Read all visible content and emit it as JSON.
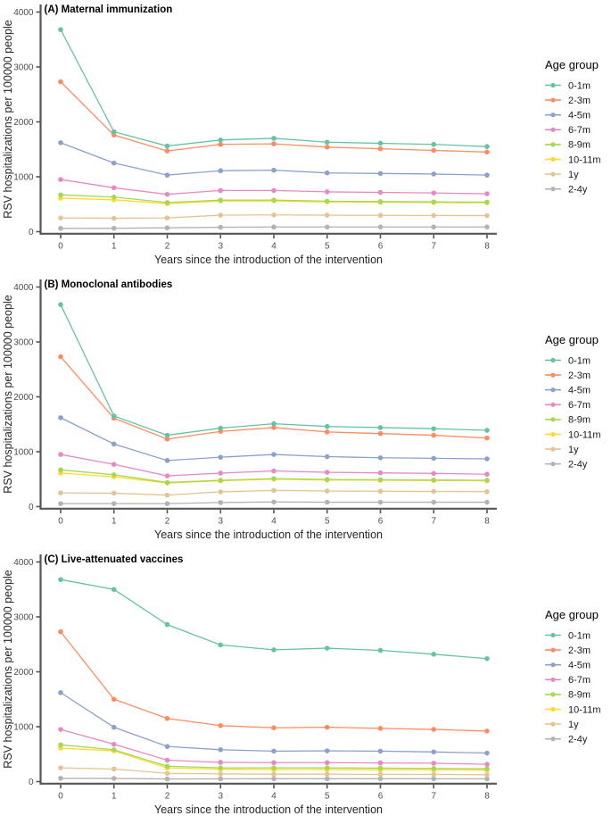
{
  "figure": {
    "background": "#ffffff",
    "axis_color": "#555555",
    "tick_label_color": "#4d4d4d",
    "axis_title_color": "#262626",
    "title_color": "#000000"
  },
  "chart_data": [
    {
      "type": "line",
      "title": "(A) Maternal immunization",
      "xlabel": "Years since the introduction of the intervention",
      "ylabel": "RSV hospitalizations per 100000 people",
      "legend_title": "Age group",
      "legend_position": "right",
      "grid": false,
      "marker": "circle",
      "x": [
        0,
        1,
        2,
        3,
        4,
        5,
        6,
        7,
        8
      ],
      "ylim": [
        0,
        4000
      ],
      "yticks": [
        0,
        1000,
        2000,
        3000,
        4000
      ],
      "series": [
        {
          "name": "0-1m",
          "color": "#66C2A5",
          "values": [
            3680,
            1820,
            1560,
            1670,
            1700,
            1630,
            1610,
            1590,
            1550
          ]
        },
        {
          "name": "2-3m",
          "color": "#FC8D62",
          "values": [
            2730,
            1760,
            1470,
            1590,
            1600,
            1540,
            1510,
            1480,
            1450
          ]
        },
        {
          "name": "4-5m",
          "color": "#8DA0CB",
          "values": [
            1620,
            1250,
            1030,
            1110,
            1120,
            1070,
            1060,
            1050,
            1030
          ]
        },
        {
          "name": "6-7m",
          "color": "#E78AC3",
          "values": [
            950,
            800,
            680,
            750,
            750,
            725,
            715,
            705,
            690
          ]
        },
        {
          "name": "8-9m",
          "color": "#A6D854",
          "values": [
            670,
            630,
            530,
            575,
            575,
            555,
            548,
            542,
            538
          ]
        },
        {
          "name": "10-11m",
          "color": "#FFD92F",
          "values": [
            610,
            580,
            510,
            560,
            560,
            542,
            535,
            530,
            527
          ]
        },
        {
          "name": "1y",
          "color": "#E5C494",
          "values": [
            250,
            245,
            250,
            300,
            305,
            300,
            297,
            295,
            292
          ]
        },
        {
          "name": "2-4y",
          "color": "#B3B3B3",
          "values": [
            60,
            62,
            70,
            80,
            85,
            85,
            85,
            85,
            85
          ]
        }
      ]
    },
    {
      "type": "line",
      "title": "(B) Monoclonal antibodies",
      "xlabel": "Years since the introduction of the intervention",
      "ylabel": "RSV hospitalizations per 100000 people",
      "legend_title": "Age group",
      "legend_position": "right",
      "grid": false,
      "marker": "circle",
      "x": [
        0,
        1,
        2,
        3,
        4,
        5,
        6,
        7,
        8
      ],
      "ylim": [
        0,
        4000
      ],
      "yticks": [
        0,
        1000,
        2000,
        3000,
        4000
      ],
      "series": [
        {
          "name": "0-1m",
          "color": "#66C2A5",
          "values": [
            3680,
            1650,
            1300,
            1430,
            1510,
            1460,
            1440,
            1420,
            1390
          ]
        },
        {
          "name": "2-3m",
          "color": "#FC8D62",
          "values": [
            2730,
            1610,
            1230,
            1370,
            1440,
            1360,
            1330,
            1300,
            1250
          ]
        },
        {
          "name": "4-5m",
          "color": "#8DA0CB",
          "values": [
            1620,
            1140,
            840,
            900,
            950,
            910,
            890,
            880,
            870
          ]
        },
        {
          "name": "6-7m",
          "color": "#E78AC3",
          "values": [
            950,
            770,
            560,
            610,
            650,
            625,
            615,
            605,
            590
          ]
        },
        {
          "name": "8-9m",
          "color": "#A6D854",
          "values": [
            670,
            580,
            440,
            480,
            510,
            495,
            490,
            485,
            480
          ]
        },
        {
          "name": "10-11m",
          "color": "#FFD92F",
          "values": [
            610,
            545,
            430,
            470,
            500,
            485,
            480,
            475,
            470
          ]
        },
        {
          "name": "1y",
          "color": "#E5C494",
          "values": [
            250,
            245,
            210,
            270,
            295,
            285,
            280,
            277,
            272
          ]
        },
        {
          "name": "2-4y",
          "color": "#B3B3B3",
          "values": [
            55,
            55,
            55,
            75,
            85,
            80,
            80,
            80,
            80
          ]
        }
      ]
    },
    {
      "type": "line",
      "title": "(C) Live-attenuated vaccines",
      "xlabel": "Years since the introduction of the intervention",
      "ylabel": "RSV hospitalizations per 100000 people",
      "legend_title": "Age group",
      "legend_position": "right",
      "grid": false,
      "marker": "circle",
      "x": [
        0,
        1,
        2,
        3,
        4,
        5,
        6,
        7,
        8
      ],
      "ylim": [
        0,
        4000
      ],
      "yticks": [
        0,
        1000,
        2000,
        3000,
        4000
      ],
      "series": [
        {
          "name": "0-1m",
          "color": "#66C2A5",
          "values": [
            3680,
            3500,
            2860,
            2490,
            2400,
            2430,
            2390,
            2320,
            2240
          ]
        },
        {
          "name": "2-3m",
          "color": "#FC8D62",
          "values": [
            2730,
            1500,
            1150,
            1020,
            980,
            990,
            970,
            950,
            920
          ]
        },
        {
          "name": "4-5m",
          "color": "#8DA0CB",
          "values": [
            1620,
            990,
            640,
            580,
            555,
            560,
            555,
            540,
            520
          ]
        },
        {
          "name": "6-7m",
          "color": "#E78AC3",
          "values": [
            950,
            680,
            390,
            350,
            345,
            345,
            340,
            335,
            315
          ]
        },
        {
          "name": "8-9m",
          "color": "#A6D854",
          "values": [
            670,
            580,
            280,
            250,
            250,
            250,
            245,
            240,
            235
          ]
        },
        {
          "name": "10-11m",
          "color": "#FFD92F",
          "values": [
            610,
            560,
            250,
            225,
            220,
            220,
            215,
            215,
            210
          ]
        },
        {
          "name": "1y",
          "color": "#E5C494",
          "values": [
            250,
            230,
            150,
            140,
            135,
            135,
            130,
            130,
            125
          ]
        },
        {
          "name": "2-4y",
          "color": "#B3B3B3",
          "values": [
            60,
            58,
            48,
            50,
            52,
            52,
            52,
            52,
            50
          ]
        }
      ]
    }
  ]
}
